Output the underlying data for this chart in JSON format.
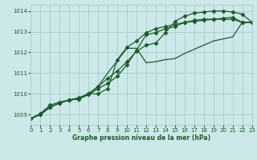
{
  "bg_color": "#cce8e8",
  "grid_color": "#aacccc",
  "line_color": "#1a5c2a",
  "title": "Graphe pression niveau de la mer (hPa)",
  "xlim": [
    0,
    23
  ],
  "ylim": [
    1008.5,
    1014.3
  ],
  "yticks": [
    1009,
    1010,
    1011,
    1012,
    1013,
    1014
  ],
  "xticks": [
    0,
    1,
    2,
    3,
    4,
    5,
    6,
    7,
    8,
    9,
    10,
    11,
    12,
    13,
    14,
    15,
    16,
    17,
    18,
    19,
    20,
    21,
    22,
    23
  ],
  "series": [
    [
      1008.8,
      1009.05,
      1009.45,
      1009.6,
      1009.7,
      1009.75,
      1009.95,
      1010.25,
      1010.5,
      1010.85,
      1011.4,
      1012.1,
      1012.85,
      1012.95,
      1013.15,
      1013.25,
      1013.45,
      1013.55,
      1013.6,
      1013.6,
      1013.6,
      1013.6,
      1013.45,
      1013.45
    ],
    [
      1008.8,
      1009.0,
      1009.35,
      1009.55,
      1009.7,
      1009.75,
      1010.0,
      1010.35,
      1010.75,
      1011.1,
      1011.55,
      1012.05,
      1012.35,
      1012.45,
      1012.95,
      1013.5,
      1013.75,
      1013.9,
      1013.95,
      1014.0,
      1014.0,
      1013.95,
      1013.85,
      1013.45
    ],
    [
      1008.8,
      1009.0,
      1009.35,
      1009.55,
      1009.7,
      1009.8,
      1010.0,
      1010.0,
      1010.25,
      1011.65,
      1012.25,
      1012.55,
      1012.95,
      1013.15,
      1013.25,
      1013.35,
      1013.45,
      1013.5,
      1013.55,
      1013.6,
      1013.65,
      1013.7,
      1013.45,
      1013.45
    ],
    [
      1008.8,
      1009.0,
      1009.35,
      1009.55,
      1009.7,
      1009.8,
      1010.0,
      1010.35,
      1011.0,
      1011.6,
      1012.2,
      1012.2,
      1011.5,
      1011.55,
      1011.65,
      1011.7,
      1011.95,
      1012.15,
      1012.35,
      1012.55,
      1012.65,
      1012.75,
      1013.45,
      1013.45
    ]
  ],
  "marker_series": [
    0,
    1,
    2
  ],
  "marker": "D",
  "markersize": 2.5,
  "linewidth": 0.9,
  "figwidth": 3.2,
  "figheight": 2.0,
  "dpi": 100,
  "title_fontsize": 5.5,
  "tick_fontsize": 5.0
}
